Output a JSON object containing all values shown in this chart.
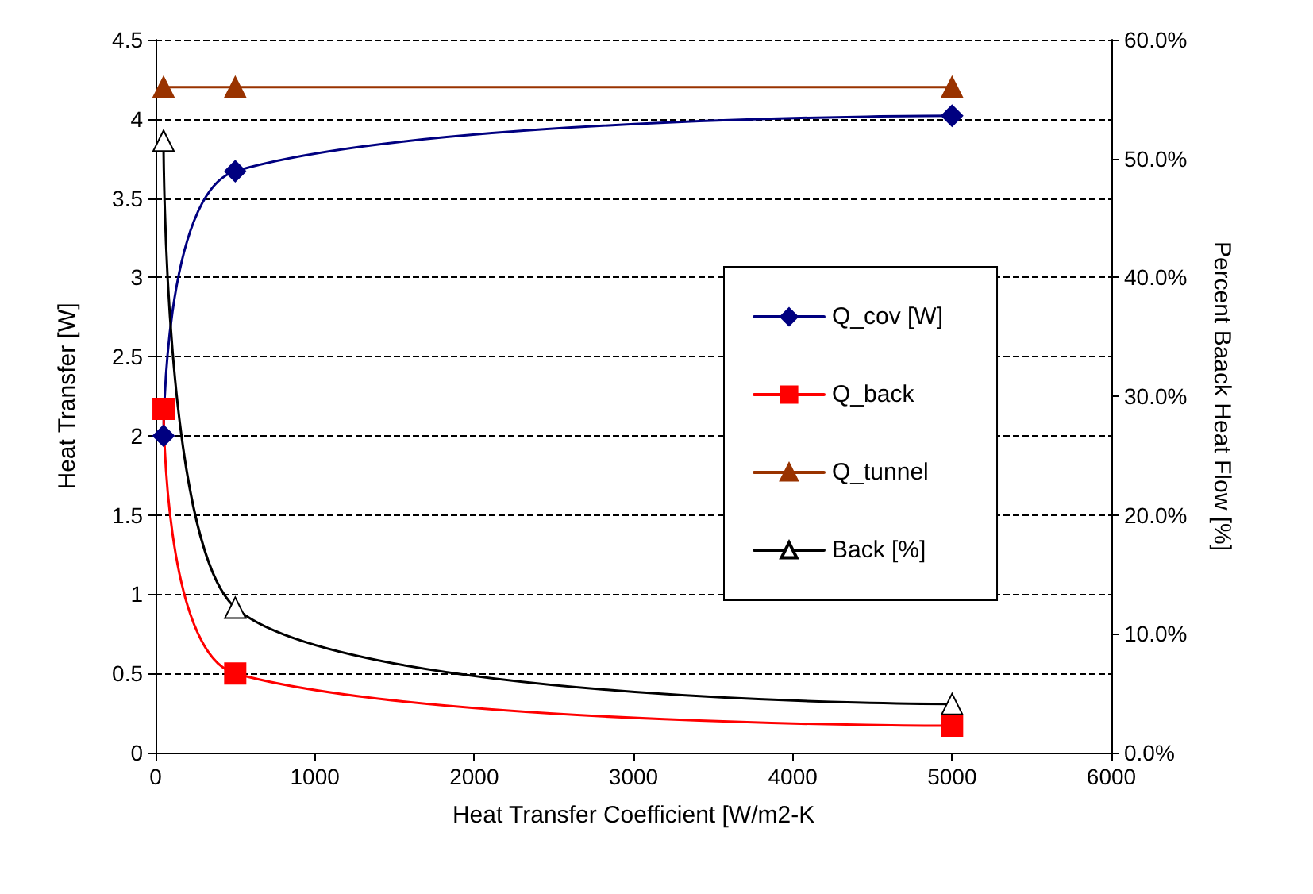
{
  "chart_data": {
    "type": "line",
    "xlabel": "Heat Transfer Coefficient [W/m2-K",
    "ylabel": "Heat Transfer [W]",
    "y2label": "Percent Baack Heat Flow [%]",
    "x": [
      50,
      500,
      5000
    ],
    "series": [
      {
        "name": "Q_cov [W]",
        "color": "#000080",
        "marker": "diamond",
        "values": [
          2.0,
          3.67,
          4.02
        ]
      },
      {
        "name": "Q_back",
        "color": "#ff0000",
        "marker": "square",
        "values": [
          2.17,
          0.5,
          0.17
        ]
      },
      {
        "name": "Q_tunnel",
        "color": "#993300",
        "marker": "triangle",
        "values": [
          4.2,
          4.2,
          4.2
        ]
      },
      {
        "name": "Back [%]",
        "color": "#000000",
        "marker": "triangle",
        "axis": "y2",
        "values": [
          51.5,
          12.2,
          4.1
        ]
      }
    ],
    "xlim": [
      0,
      6000
    ],
    "xticks": [
      0,
      1000,
      2000,
      3000,
      4000,
      5000,
      6000
    ],
    "ylim": [
      0,
      4.5
    ],
    "yticks": [
      0,
      0.5,
      1,
      1.5,
      2,
      2.5,
      3,
      3.5,
      4,
      4.5
    ],
    "y2lim": [
      0,
      60
    ],
    "y2ticks": [
      {
        "value": 0,
        "label": "0.0%"
      },
      {
        "value": 10,
        "label": "10.0%"
      },
      {
        "value": 20,
        "label": "20.0%"
      },
      {
        "value": 30,
        "label": "30.0%"
      },
      {
        "value": 40,
        "label": "40.0%"
      },
      {
        "value": 50,
        "label": "50.0%"
      },
      {
        "value": 60,
        "label": "60.0%"
      }
    ],
    "grid": "y",
    "legend": "right",
    "line_style": "solid"
  }
}
